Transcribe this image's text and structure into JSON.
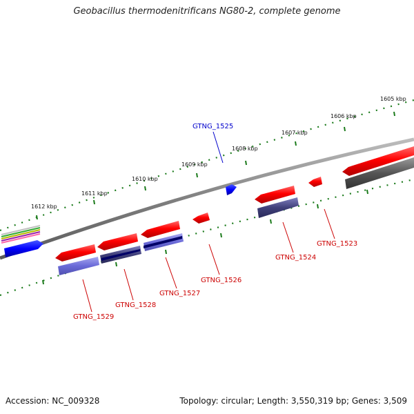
{
  "title": "Geobacillus thermodenitrificans NG80-2, complete genome",
  "footer": {
    "accession": "Accession: NC_009328",
    "summary": "Topology: circular; Length: 3,550,319 bp; Genes: 3,509"
  },
  "ruler_ticks": [
    "1612 kbp",
    "1611 kbp",
    "1610 kbp",
    "1609 kbp",
    "1608 kbp",
    "1607 kbp",
    "1606 kbp",
    "1605 kbp"
  ],
  "genes_forward": [
    {
      "label": "GTNG_1525",
      "color": "#0000cc"
    }
  ],
  "genes_reverse": [
    {
      "label": "GTNG_1529",
      "color": "#cc0000"
    },
    {
      "label": "GTNG_1528",
      "color": "#cc0000"
    },
    {
      "label": "GTNG_1527",
      "color": "#cc0000"
    },
    {
      "label": "GTNG_1526",
      "color": "#cc0000"
    },
    {
      "label": "GTNG_1524",
      "color": "#cc0000"
    },
    {
      "label": "GTNG_1523",
      "color": "#cc0000"
    }
  ],
  "colors": {
    "backbone": "#808080",
    "tick": "#1a7a1a",
    "cds": "#ff0000",
    "feature": "#6666cc",
    "forward_gene": "#0000ff",
    "dark_feature": "#555555"
  }
}
